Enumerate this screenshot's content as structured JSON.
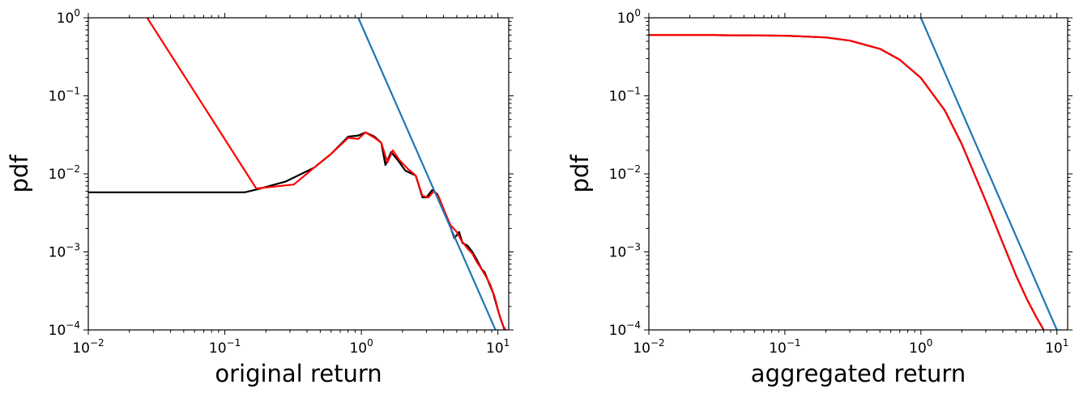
{
  "chart_data": [
    {
      "type": "line",
      "xlabel": "original return",
      "ylabel": "pdf",
      "xscale": "log",
      "yscale": "log",
      "xlim": [
        0.01,
        12
      ],
      "ylim": [
        0.0001,
        1
      ],
      "xticks": [
        {
          "base": "10",
          "exp": "−2"
        },
        {
          "base": "10",
          "exp": "−1"
        },
        {
          "base": "10",
          "exp": "0"
        },
        {
          "base": "10",
          "exp": "1"
        }
      ],
      "yticks": [
        {
          "base": "10",
          "exp": "−4"
        },
        {
          "base": "10",
          "exp": "−3"
        },
        {
          "base": "10",
          "exp": "−2"
        },
        {
          "base": "10",
          "exp": "−1"
        },
        {
          "base": "10",
          "exp": "0"
        }
      ],
      "series": [
        {
          "color": "#000000",
          "points": [
            [
              0.01,
              0.0058
            ],
            [
              0.03,
              0.0058
            ],
            [
              0.08,
              0.0058
            ],
            [
              0.14,
              0.0058
            ],
            [
              0.17,
              0.0063
            ],
            [
              0.28,
              0.008
            ],
            [
              0.45,
              0.012
            ],
            [
              0.6,
              0.018
            ],
            [
              0.8,
              0.03
            ],
            [
              0.95,
              0.031
            ],
            [
              1.07,
              0.034
            ],
            [
              1.25,
              0.03
            ],
            [
              1.4,
              0.025
            ],
            [
              1.5,
              0.013
            ],
            [
              1.65,
              0.019
            ],
            [
              1.85,
              0.015
            ],
            [
              2.1,
              0.011
            ],
            [
              2.5,
              0.0095
            ],
            [
              2.8,
              0.005
            ],
            [
              3.0,
              0.005
            ],
            [
              3.3,
              0.0062
            ],
            [
              3.6,
              0.0055
            ],
            [
              4.0,
              0.0035
            ],
            [
              4.4,
              0.0023
            ],
            [
              4.8,
              0.0015
            ],
            [
              5.2,
              0.0018
            ],
            [
              5.5,
              0.0013
            ],
            [
              6.0,
              0.0012
            ],
            [
              6.5,
              0.001
            ],
            [
              7.0,
              0.0008
            ],
            [
              7.6,
              0.0006
            ],
            [
              8.0,
              0.00055
            ],
            [
              8.6,
              0.0004
            ],
            [
              9.2,
              0.0003
            ],
            [
              10.0,
              0.00018
            ],
            [
              10.6,
              0.00013
            ],
            [
              11.2,
              0.0001
            ]
          ]
        },
        {
          "color": "#ff0000",
          "points": [
            [
              0.027,
              1.0
            ],
            [
              0.17,
              0.0065
            ],
            [
              0.32,
              0.0073
            ],
            [
              0.45,
              0.012
            ],
            [
              0.6,
              0.018
            ],
            [
              0.8,
              0.029
            ],
            [
              0.95,
              0.028
            ],
            [
              1.07,
              0.034
            ],
            [
              1.25,
              0.029
            ],
            [
              1.4,
              0.025
            ],
            [
              1.55,
              0.014
            ],
            [
              1.7,
              0.02
            ],
            [
              1.9,
              0.015
            ],
            [
              2.2,
              0.0115
            ],
            [
              2.5,
              0.0095
            ],
            [
              2.8,
              0.0052
            ],
            [
              3.1,
              0.005
            ],
            [
              3.4,
              0.006
            ],
            [
              3.7,
              0.005
            ],
            [
              4.1,
              0.0032
            ],
            [
              4.5,
              0.0022
            ],
            [
              5.0,
              0.0018
            ],
            [
              5.4,
              0.0014
            ],
            [
              6.0,
              0.0011
            ],
            [
              6.5,
              0.00095
            ],
            [
              7.0,
              0.00075
            ],
            [
              7.6,
              0.0006
            ],
            [
              8.2,
              0.00048
            ],
            [
              8.8,
              0.00038
            ],
            [
              9.5,
              0.00026
            ],
            [
              10.2,
              0.00016
            ],
            [
              11.0,
              0.00011
            ],
            [
              11.4,
              0.0001
            ]
          ]
        },
        {
          "color": "#1f77b4",
          "points": [
            [
              0.95,
              1.0
            ],
            [
              9.6,
              0.0001
            ]
          ]
        }
      ]
    },
    {
      "type": "line",
      "xlabel": "aggregated return",
      "ylabel": "pdf",
      "xscale": "log",
      "yscale": "log",
      "xlim": [
        0.01,
        12
      ],
      "ylim": [
        0.0001,
        1
      ],
      "xticks": [
        {
          "base": "10",
          "exp": "−2"
        },
        {
          "base": "10",
          "exp": "−1"
        },
        {
          "base": "10",
          "exp": "0"
        },
        {
          "base": "10",
          "exp": "1"
        }
      ],
      "yticks": [
        {
          "base": "10",
          "exp": "−4"
        },
        {
          "base": "10",
          "exp": "−3"
        },
        {
          "base": "10",
          "exp": "−2"
        },
        {
          "base": "10",
          "exp": "−1"
        },
        {
          "base": "10",
          "exp": "0"
        }
      ],
      "series": [
        {
          "color": "#000000",
          "points": [
            [
              0.01,
              0.6
            ],
            [
              0.03,
              0.6
            ],
            [
              0.1,
              0.59
            ],
            [
              0.2,
              0.56
            ],
            [
              0.3,
              0.51
            ],
            [
              0.5,
              0.4
            ],
            [
              0.7,
              0.29
            ],
            [
              1.0,
              0.17
            ],
            [
              1.5,
              0.065
            ],
            [
              2.0,
              0.024
            ],
            [
              3.0,
              0.0045
            ],
            [
              4.0,
              0.0013
            ],
            [
              5.0,
              0.0005
            ],
            [
              6.0,
              0.00025
            ],
            [
              7.0,
              0.00015
            ],
            [
              8.0,
              0.0001
            ]
          ]
        },
        {
          "color": "#ff0000",
          "points": [
            [
              0.01,
              0.6
            ],
            [
              0.03,
              0.6
            ],
            [
              0.1,
              0.59
            ],
            [
              0.2,
              0.56
            ],
            [
              0.3,
              0.51
            ],
            [
              0.5,
              0.4
            ],
            [
              0.7,
              0.29
            ],
            [
              1.0,
              0.17
            ],
            [
              1.5,
              0.065
            ],
            [
              2.0,
              0.024
            ],
            [
              3.0,
              0.0045
            ],
            [
              4.0,
              0.0013
            ],
            [
              5.0,
              0.0005
            ],
            [
              6.0,
              0.00025
            ],
            [
              7.0,
              0.00015
            ],
            [
              8.0,
              0.0001
            ]
          ]
        },
        {
          "color": "#1f77b4",
          "points": [
            [
              1.0,
              1.0
            ],
            [
              10.0,
              0.0001
            ]
          ]
        }
      ]
    }
  ]
}
